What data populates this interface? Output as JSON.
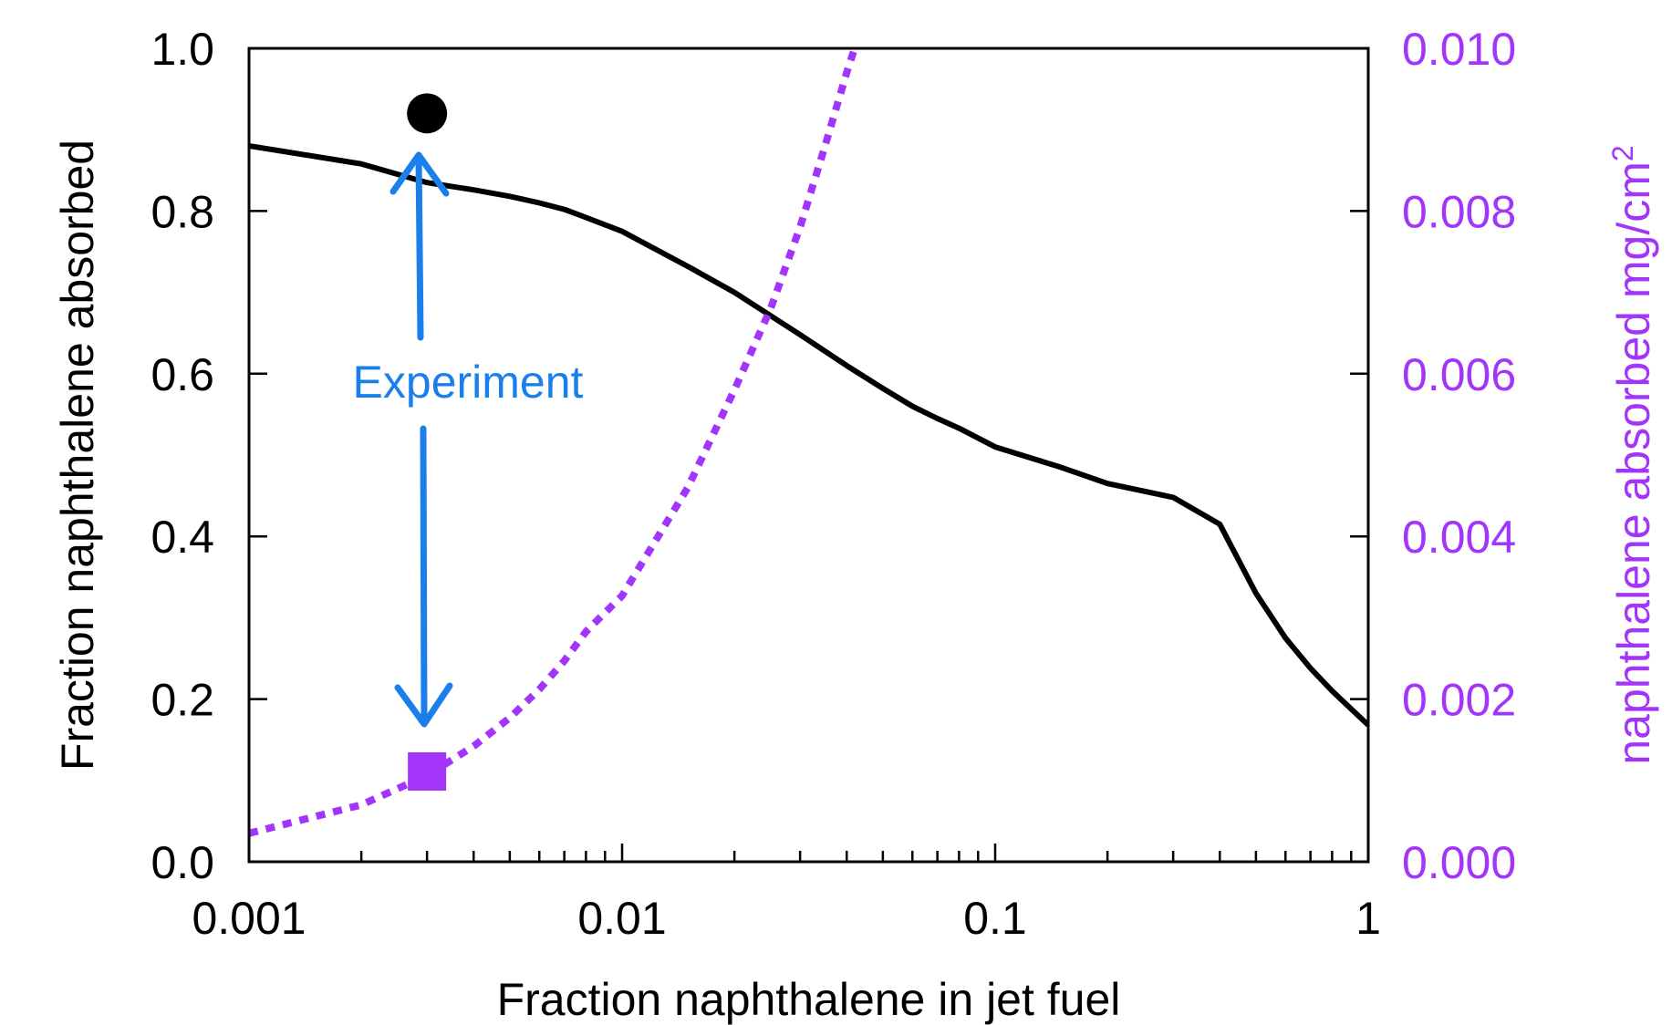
{
  "chart_data": {
    "type": "line",
    "xlabel": "Fraction naphthalene in jet fuel",
    "ylabel_left": "Fraction naphthalene absorbed",
    "ylabel_right_main": "naphthalene absorbed mg/cm",
    "ylabel_right_sup": "2",
    "x_scale": "log",
    "xlim": [
      0.001,
      1
    ],
    "ylim_left": [
      0,
      1
    ],
    "ylim_right": [
      0,
      0.01
    ],
    "x_tick_labels": [
      "0.001",
      "0.01",
      "0.1",
      "1"
    ],
    "x_tick_values": [
      0.001,
      0.01,
      0.1,
      1
    ],
    "y_left_tick_labels": [
      "0.0",
      "0.2",
      "0.4",
      "0.6",
      "0.8",
      "1.0"
    ],
    "y_left_tick_values": [
      0,
      0.2,
      0.4,
      0.6,
      0.8,
      1.0
    ],
    "y_right_tick_labels": [
      "0.000",
      "0.002",
      "0.004",
      "0.006",
      "0.008",
      "0.010"
    ],
    "y_right_tick_values": [
      0,
      0.002,
      0.004,
      0.006,
      0.008,
      0.01
    ],
    "grid": false,
    "colors": {
      "fraction": "#000000",
      "mass": "#a335fa",
      "annotation": "#1a7fea"
    },
    "series": [
      {
        "axis": "left",
        "style": "solid",
        "x": [
          0.001,
          0.002,
          0.003,
          0.004,
          0.005,
          0.006,
          0.007,
          0.008,
          0.01,
          0.015,
          0.02,
          0.03,
          0.04,
          0.05,
          0.06,
          0.07,
          0.08,
          0.1,
          0.15,
          0.2,
          0.3,
          0.4,
          0.5,
          0.6,
          0.7,
          0.8,
          1.0
        ],
        "y": [
          0.88,
          0.858,
          0.835,
          0.826,
          0.818,
          0.81,
          0.802,
          0.792,
          0.775,
          0.732,
          0.7,
          0.648,
          0.61,
          0.582,
          0.56,
          0.545,
          0.533,
          0.51,
          0.485,
          0.465,
          0.448,
          0.415,
          0.33,
          0.275,
          0.238,
          0.21,
          0.168
        ]
      },
      {
        "axis": "right",
        "style": "dotted",
        "x": [
          0.001,
          0.002,
          0.003,
          0.004,
          0.005,
          0.006,
          0.007,
          0.008,
          0.01,
          0.015,
          0.02,
          0.025,
          0.03,
          0.035,
          0.04,
          0.042
        ],
        "y": [
          0.00035,
          0.0007,
          0.00106,
          0.00142,
          0.00177,
          0.00212,
          0.00247,
          0.00283,
          0.00327,
          0.0046,
          0.0058,
          0.0068,
          0.0078,
          0.0088,
          0.0097,
          0.01
        ]
      }
    ],
    "experiment_points": [
      {
        "x": 0.003,
        "y": 0.92,
        "axis": "left",
        "marker": "circle"
      },
      {
        "x": 0.003,
        "y": 0.00111,
        "axis": "right",
        "marker": "square"
      }
    ],
    "annotation": "Experiment"
  }
}
